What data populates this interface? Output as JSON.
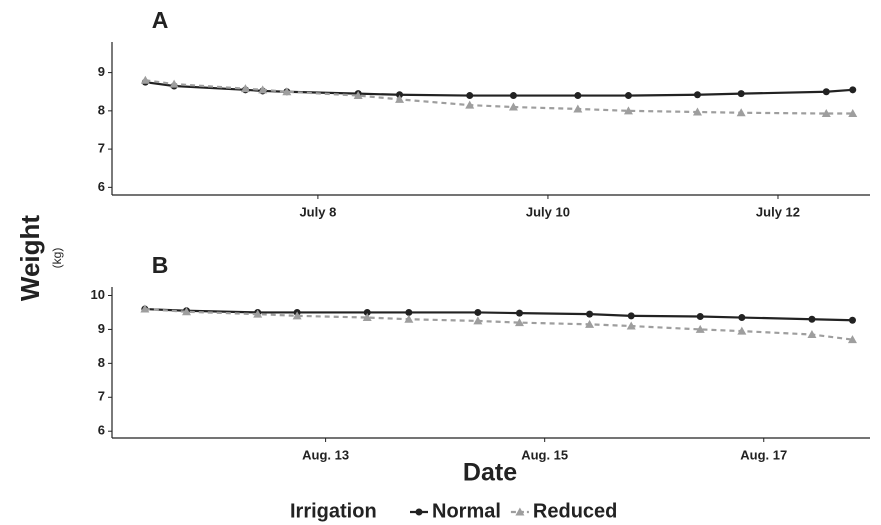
{
  "y_label": "Weight",
  "y_unit": "(kg)",
  "x_label": "Date",
  "legend_title": "Irrigation",
  "chart_data": [
    {
      "type": "line",
      "title": "A",
      "x": [
        6.5,
        6.75,
        7.37,
        7.52,
        7.73,
        8.35,
        8.71,
        9.32,
        9.7,
        10.26,
        10.7,
        11.3,
        11.68,
        12.42,
        12.65
      ],
      "xlim": [
        6.21,
        12.8
      ],
      "xticks": [
        {
          "value": 8,
          "label": "July 8"
        },
        {
          "value": 10,
          "label": "July 10"
        },
        {
          "value": 12,
          "label": "July 12"
        }
      ],
      "ylim": [
        5.8,
        9.8
      ],
      "yticks": [
        6,
        7,
        8,
        9
      ],
      "series": [
        {
          "name": "Normal",
          "color": "#222222",
          "line_style": "solid",
          "marker": "circle",
          "values": [
            8.75,
            8.65,
            8.55,
            8.52,
            8.5,
            8.45,
            8.42,
            8.4,
            8.4,
            8.4,
            8.4,
            8.42,
            8.45,
            8.5,
            8.55
          ]
        },
        {
          "name": "Reduced",
          "color": "#9e9e9e",
          "line_style": "dashed",
          "marker": "triangle",
          "values": [
            8.8,
            8.7,
            8.58,
            8.55,
            8.5,
            8.4,
            8.3,
            8.15,
            8.1,
            8.05,
            8.0,
            7.97,
            7.95,
            7.93,
            7.93
          ]
        }
      ]
    },
    {
      "type": "line",
      "title": "B",
      "x": [
        11.35,
        11.73,
        12.38,
        12.74,
        13.38,
        13.76,
        14.39,
        14.77,
        15.41,
        15.79,
        16.42,
        16.8,
        17.44,
        17.81
      ],
      "xlim": [
        11.05,
        17.97
      ],
      "xticks": [
        {
          "value": 13,
          "label": "Aug. 13"
        },
        {
          "value": 15,
          "label": "Aug. 15"
        },
        {
          "value": 17,
          "label": "Aug. 17"
        }
      ],
      "ylim": [
        5.8,
        10.25
      ],
      "yticks": [
        6,
        7,
        8,
        9,
        10
      ],
      "series": [
        {
          "name": "Normal",
          "color": "#222222",
          "line_style": "solid",
          "marker": "circle",
          "values": [
            9.6,
            9.55,
            9.5,
            9.5,
            9.5,
            9.5,
            9.5,
            9.48,
            9.45,
            9.4,
            9.38,
            9.35,
            9.3,
            9.27
          ]
        },
        {
          "name": "Reduced",
          "color": "#9e9e9e",
          "line_style": "dashed",
          "marker": "triangle",
          "values": [
            9.6,
            9.52,
            9.45,
            9.4,
            9.35,
            9.3,
            9.25,
            9.2,
            9.15,
            9.1,
            9.0,
            8.95,
            8.85,
            8.7
          ]
        }
      ]
    }
  ]
}
